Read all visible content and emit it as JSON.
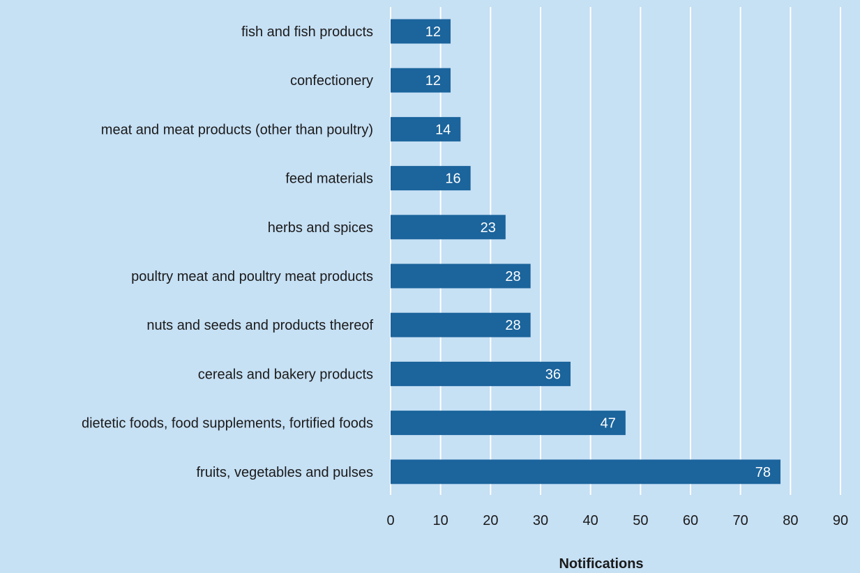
{
  "chart_data": {
    "type": "bar",
    "orientation": "horizontal",
    "categories": [
      "fish and fish products",
      "confectionery",
      "meat and meat products (other than poultry)",
      "feed materials",
      "herbs and spices",
      "poultry meat and poultry meat products",
      "nuts and seeds and products thereof",
      "cereals and bakery products",
      "dietetic foods, food supplements, fortified foods",
      "fruits, vegetables and pulses"
    ],
    "values": [
      12,
      12,
      14,
      16,
      23,
      28,
      28,
      36,
      47,
      78
    ],
    "title": "",
    "xlabel": "Notifications",
    "ylabel": "",
    "xlim": [
      0,
      90
    ],
    "xticks": [
      0,
      10,
      20,
      30,
      40,
      50,
      60,
      70,
      80,
      90
    ],
    "grid": "vertical",
    "data_labels": true,
    "legend": "none",
    "colors": {
      "bar": "#1b649c",
      "background": "#c6e0f4",
      "grid": "#ffffff",
      "bar_label": "#ffffff",
      "text": "#1a1a1a"
    }
  }
}
